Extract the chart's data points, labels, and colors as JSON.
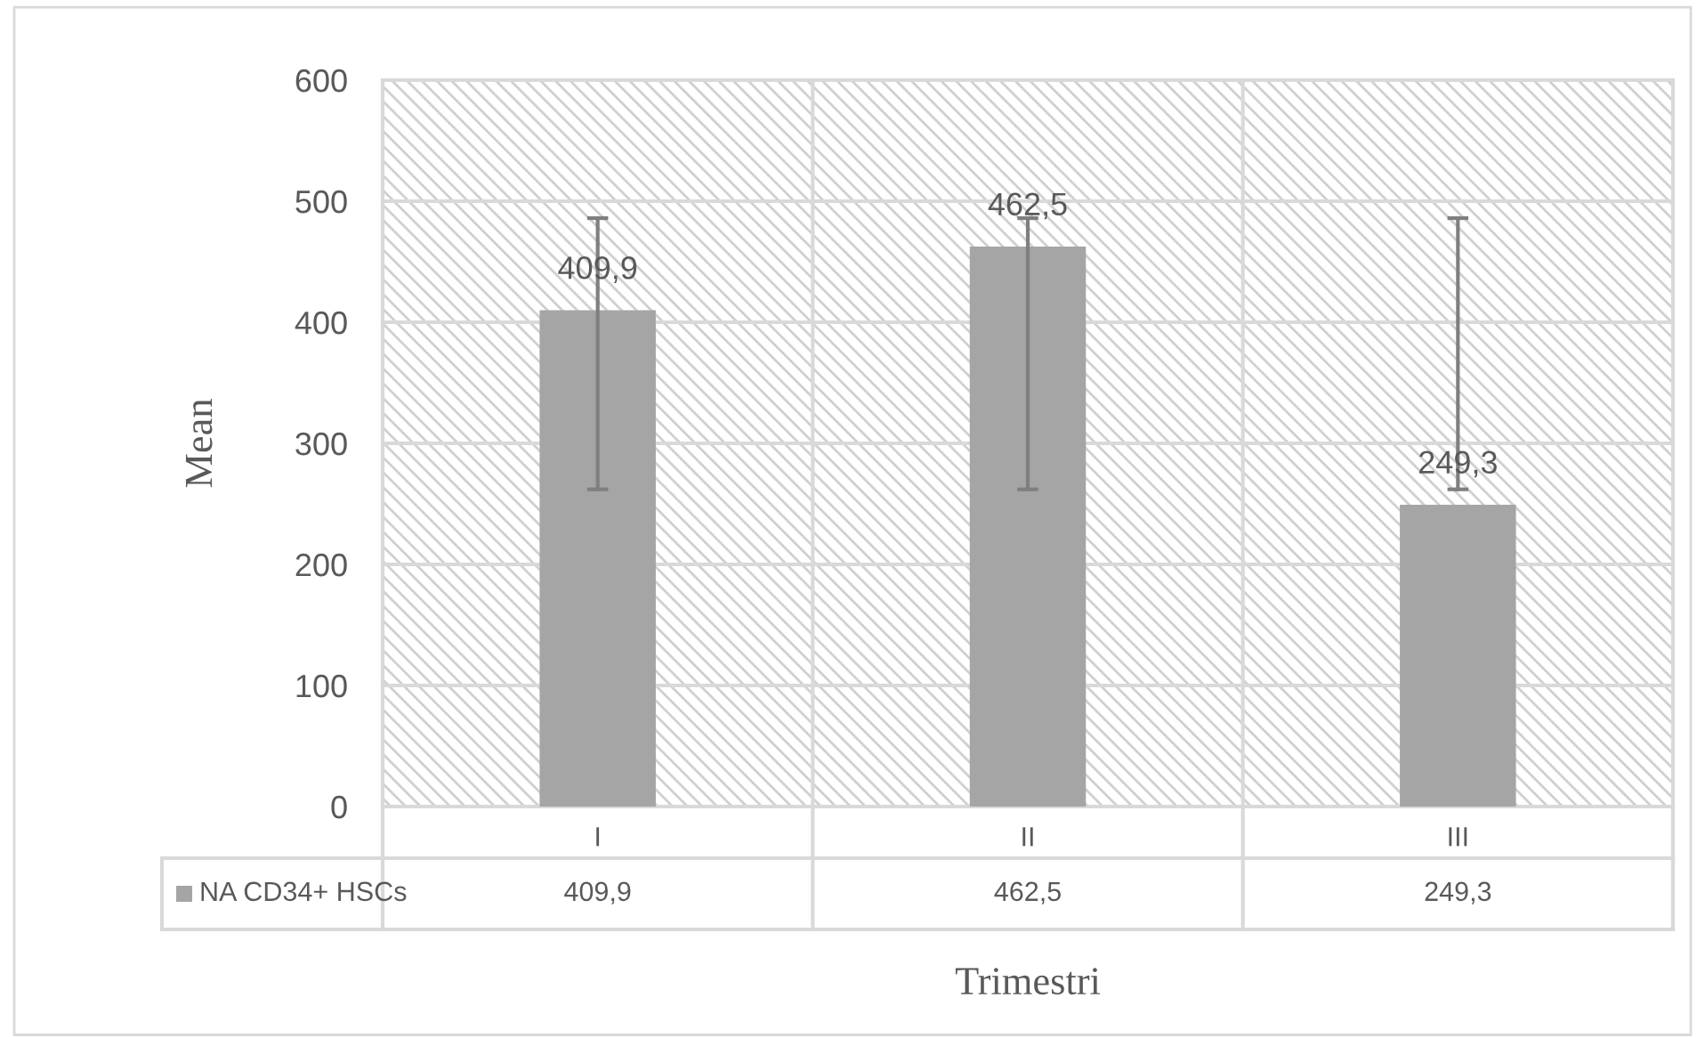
{
  "chart_data": {
    "type": "bar",
    "xlabel": "Trimestri",
    "ylabel": "Mean",
    "categories": [
      "I",
      "II",
      "III"
    ],
    "series": [
      {
        "name": "NA CD34+ HSCs",
        "color": "#a5a5a5",
        "values": [
          409.9,
          462.5,
          249.3
        ],
        "value_labels": [
          "409,9",
          "462,5",
          "249,3"
        ],
        "errors": [
          [
            262,
            486
          ],
          [
            262,
            486
          ],
          [
            262,
            486
          ]
        ]
      }
    ],
    "ylim": [
      0,
      600
    ],
    "yticks": [
      0,
      100,
      200,
      300,
      400,
      500,
      600
    ],
    "grid": true,
    "legend": "bottom"
  }
}
